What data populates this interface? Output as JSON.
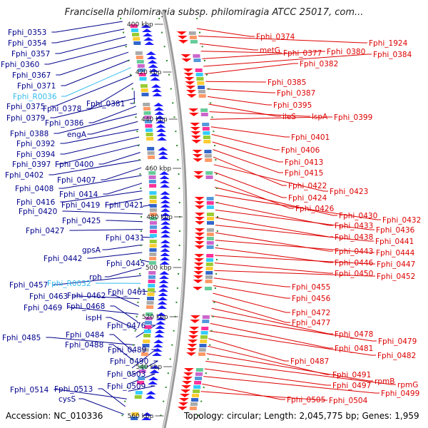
{
  "title": "Francisella philomiragia subsp. philomiragia ATCC 25017, com...",
  "footer": {
    "accession": "Accession: NC_010336",
    "summary": "Topology: circular; Length: 2,045,775 bp; Genes: 1,959"
  },
  "colors": {
    "left_label": "#00008b",
    "left_rna": "#33bbee",
    "right_label": "#dd0000",
    "forward_arrow": "#1a1aff",
    "reverse_arrow": "#ff1010",
    "backbone": "#999999",
    "tick_dots": "#2a8a2a"
  },
  "kbp_ticks": [
    "400 kbp",
    "420 kbp",
    "440 kbp",
    "460 kbp",
    "480 kbp",
    "500 kbp",
    "520 kbp",
    "540 kbp",
    "560 kbp"
  ],
  "left_labels": [
    "Fphi_0353",
    "Fphi_0354",
    "Fphi_0357",
    "Fphi_0360",
    "Fphi_0367",
    "Fphi_0371",
    "Fphi_R0036",
    "Fphi_0375",
    "Fphi_0378",
    "Fphi_0381",
    "Fphi_0379",
    "Fphi_0386",
    "Fphi_0388",
    "engA",
    "Fphi_0392",
    "Fphi_0394",
    "Fphi_0397",
    "Fphi_0400",
    "Fphi_0402",
    "Fphi_0407",
    "Fphi_0408",
    "Fphi_0414",
    "Fphi_0416",
    "Fphi_0419",
    "Fphi_0421",
    "Fphi_0420",
    "Fphi_0425",
    "Fphi_0427",
    "Fphi_0431",
    "gpsA",
    "Fphi_0442",
    "Fphi_0445",
    "rph",
    "Fphi_0457",
    "Fphi_R0032",
    "Fphi_0461",
    "Fphi_0463",
    "Fphi_0462",
    "Fphi_0469",
    "Fphi_0468",
    "ispH",
    "Fphi_0476",
    "Fphi_0485",
    "Fphi_0484",
    "Fphi_0488",
    "Fphi_0489",
    "Fphi_0490",
    "Fphi_0503",
    "Fphi_0509",
    "Fphi_0514",
    "Fphi_0513",
    "cysS"
  ],
  "right_labels": [
    "Fphi_0374",
    "Fphi_1924",
    "metG",
    "Fphi_0377",
    "Fphi_0380",
    "Fphi_0384",
    "Fphi_0382",
    "Fphi_0385",
    "Fphi_0387",
    "Fphi_0395",
    "ileS",
    "lspA",
    "Fphi_0399",
    "Fphi_0401",
    "Fphi_0406",
    "Fphi_0413",
    "Fphi_0415",
    "Fphi_0422",
    "Fphi_0423",
    "Fphi_0424",
    "Fphi_0426",
    "Fphi_0430",
    "Fphi_0432",
    "Fphi_0433",
    "Fphi_0436",
    "Fphi_0438",
    "Fphi_0441",
    "Fphi_0443",
    "Fphi_0444",
    "Fphi_0446",
    "Fphi_0447",
    "Fphi_0450",
    "Fphi_0452",
    "Fphi_0455",
    "Fphi_0456",
    "Fphi_0472",
    "Fphi_0477",
    "Fphi_0478",
    "Fphi_0479",
    "Fphi_0481",
    "Fphi_0482",
    "Fphi_0487",
    "Fphi_0491",
    "rpmB",
    "rpmG",
    "Fphi_0497",
    "Fphi_0499",
    "Fphi_0505",
    "Fphi_0504"
  ]
}
